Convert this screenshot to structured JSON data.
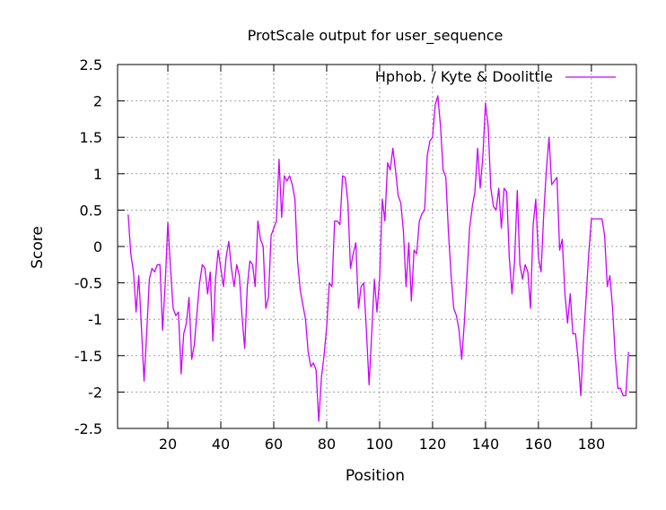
{
  "chart_data": {
    "type": "line",
    "title": "ProtScale output for user_sequence",
    "xlabel": "Position",
    "ylabel": "Score",
    "xlim": [
      1,
      197
    ],
    "ylim": [
      -2.5,
      2.5
    ],
    "x_ticks": [
      20,
      40,
      60,
      80,
      100,
      120,
      140,
      160,
      180
    ],
    "y_ticks": [
      2.5,
      2,
      1.5,
      1,
      0.5,
      0,
      -0.5,
      -1,
      -1.5,
      -2,
      -2.5
    ],
    "x_tick_labels": [
      "20",
      "40",
      "60",
      "80",
      "100",
      "120",
      "140",
      "160",
      "180"
    ],
    "y_tick_labels": [
      "2.5",
      "2",
      "1.5",
      "1",
      "0.5",
      "0",
      "-0.5",
      "-1",
      "-1.5",
      "-2",
      "-2.5"
    ],
    "grid": true,
    "legend_position": "top-right",
    "series": [
      {
        "name": "Hphob. / Kyte & Doolittle",
        "color": "#cc00ff",
        "x": [
          5,
          6,
          7,
          8,
          9,
          10,
          11,
          12,
          13,
          14,
          15,
          16,
          17,
          18,
          19,
          20,
          21,
          22,
          23,
          24,
          25,
          26,
          27,
          28,
          29,
          30,
          31,
          32,
          33,
          34,
          35,
          36,
          37,
          38,
          39,
          40,
          41,
          42,
          43,
          44,
          45,
          46,
          47,
          48,
          49,
          50,
          51,
          52,
          53,
          54,
          55,
          56,
          57,
          58,
          59,
          60,
          61,
          62,
          63,
          64,
          65,
          66,
          67,
          68,
          69,
          70,
          71,
          72,
          73,
          74,
          75,
          76,
          77,
          78,
          79,
          80,
          81,
          82,
          83,
          84,
          85,
          86,
          87,
          88,
          89,
          90,
          91,
          92,
          93,
          94,
          95,
          96,
          97,
          98,
          99,
          100,
          101,
          102,
          103,
          104,
          105,
          106,
          107,
          108,
          109,
          110,
          111,
          112,
          113,
          114,
          115,
          116,
          117,
          118,
          119,
          120,
          121,
          122,
          123,
          124,
          125,
          126,
          127,
          128,
          129,
          130,
          131,
          132,
          133,
          134,
          135,
          136,
          137,
          138,
          139,
          140,
          141,
          142,
          143,
          144,
          145,
          146,
          147,
          148,
          149,
          150,
          151,
          152,
          153,
          154,
          155,
          156,
          157,
          158,
          159,
          160,
          161,
          162,
          163,
          164,
          165,
          166,
          167,
          168,
          169,
          170,
          171,
          172,
          173,
          174,
          175,
          176,
          177,
          178,
          179,
          180,
          181,
          182,
          183,
          184,
          185,
          186,
          187,
          188,
          189,
          190,
          191,
          192,
          193,
          194
        ],
        "values": [
          0.44,
          -0.1,
          -0.35,
          -0.9,
          -0.4,
          -1.1,
          -1.85,
          -1.2,
          -0.45,
          -0.3,
          -0.35,
          -0.25,
          -0.25,
          -1.15,
          -0.5,
          0.33,
          -0.3,
          -0.85,
          -0.95,
          -0.9,
          -1.75,
          -1.2,
          -1.05,
          -0.7,
          -1.55,
          -1.35,
          -0.9,
          -0.5,
          -0.25,
          -0.3,
          -0.65,
          -0.35,
          -1.3,
          -0.45,
          -0.05,
          -0.3,
          -0.55,
          -0.15,
          0.07,
          -0.3,
          -0.55,
          -0.25,
          -0.4,
          -0.95,
          -1.4,
          -0.55,
          -0.2,
          -0.25,
          -0.55,
          0.35,
          0.1,
          0.0,
          -0.85,
          -0.7,
          0.15,
          0.25,
          0.35,
          1.2,
          0.4,
          0.97,
          0.9,
          0.97,
          0.85,
          0.65,
          -0.2,
          -0.6,
          -0.8,
          -1.0,
          -1.45,
          -1.65,
          -1.6,
          -1.7,
          -2.4,
          -1.8,
          -1.5,
          -1.1,
          -0.5,
          -0.55,
          0.35,
          0.35,
          0.3,
          0.97,
          0.95,
          0.6,
          -0.3,
          -0.1,
          0.05,
          -0.85,
          -0.55,
          -0.5,
          -1.15,
          -1.9,
          -1.2,
          -0.45,
          -0.9,
          -0.45,
          0.65,
          0.35,
          1.15,
          1.05,
          1.35,
          1.05,
          0.7,
          0.6,
          0.2,
          -0.55,
          0.05,
          -0.75,
          -0.05,
          -0.1,
          0.35,
          0.45,
          0.5,
          1.25,
          1.45,
          1.5,
          1.95,
          2.07,
          1.65,
          1.05,
          0.95,
          0.2,
          -0.4,
          -0.85,
          -0.95,
          -1.15,
          -1.55,
          -1.05,
          -0.4,
          0.25,
          0.55,
          0.75,
          1.35,
          0.8,
          1.25,
          1.97,
          1.65,
          0.8,
          0.55,
          0.5,
          0.8,
          0.25,
          0.8,
          0.75,
          -0.15,
          -0.65,
          -0.2,
          0.77,
          -0.25,
          -0.45,
          -0.25,
          -0.35,
          -0.85,
          0.3,
          0.65,
          -0.15,
          -0.35,
          0.45,
          1.05,
          1.5,
          0.85,
          0.9,
          0.95,
          -0.05,
          0.1,
          -0.65,
          -1.05,
          -0.65,
          -1.2,
          -1.2,
          -1.55,
          -2.05,
          -1.3,
          -0.7,
          -0.1,
          0.38,
          0.38,
          0.38,
          0.38,
          0.38,
          0.15,
          -0.55,
          -0.4,
          -0.85,
          -1.5,
          -1.95,
          -1.95,
          -2.05,
          -2.05,
          -1.45
        ]
      }
    ]
  }
}
